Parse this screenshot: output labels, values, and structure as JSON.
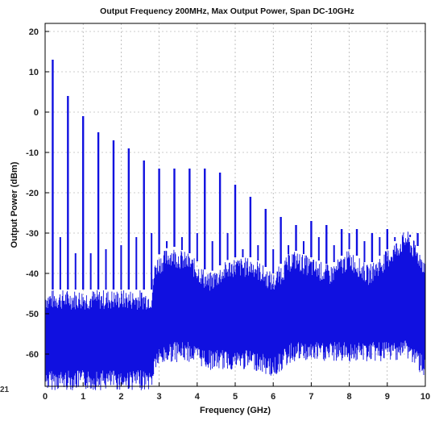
{
  "edge_label": "21",
  "chart_data": {
    "type": "line",
    "title": "Output Frequency 200MHz, Max Output Power, Span DC-10GHz",
    "xlabel": "Frequency (GHz)",
    "ylabel": "Output Power (dBm)",
    "xlim": [
      0,
      10
    ],
    "ylim": [
      -68,
      22
    ],
    "xticks": [
      0,
      1,
      2,
      3,
      4,
      5,
      6,
      7,
      8,
      9,
      10
    ],
    "yticks": [
      -60,
      -50,
      -40,
      -30,
      -20,
      -10,
      0,
      10,
      20
    ],
    "grid": true,
    "color": "#1010e0",
    "noise_floor": [
      {
        "x": 0.0,
        "top": -48,
        "bottom": -65
      },
      {
        "x": 2.8,
        "top": -48,
        "bottom": -65
      },
      {
        "x": 2.9,
        "top": -40,
        "bottom": -60
      },
      {
        "x": 3.3,
        "top": -37,
        "bottom": -58
      },
      {
        "x": 3.8,
        "top": -39,
        "bottom": -58
      },
      {
        "x": 4.3,
        "top": -44,
        "bottom": -60
      },
      {
        "x": 4.9,
        "top": -40,
        "bottom": -60
      },
      {
        "x": 5.5,
        "top": -40,
        "bottom": -60
      },
      {
        "x": 6.0,
        "top": -44,
        "bottom": -62
      },
      {
        "x": 6.5,
        "top": -38,
        "bottom": -58
      },
      {
        "x": 7.0,
        "top": -40,
        "bottom": -58
      },
      {
        "x": 7.5,
        "top": -42,
        "bottom": -58
      },
      {
        "x": 8.0,
        "top": -38,
        "bottom": -58
      },
      {
        "x": 8.5,
        "top": -42,
        "bottom": -58
      },
      {
        "x": 9.0,
        "top": -38,
        "bottom": -58
      },
      {
        "x": 9.5,
        "top": -33,
        "bottom": -57
      },
      {
        "x": 10.0,
        "top": -40,
        "bottom": -62
      }
    ],
    "harmonics": {
      "x": [
        0.2,
        0.6,
        1.0,
        1.4,
        1.8,
        2.2,
        2.6,
        3.0,
        3.4,
        3.8,
        4.2,
        4.6,
        5.0,
        5.4,
        5.8,
        6.2,
        6.6,
        7.0,
        7.4,
        7.8,
        8.2,
        8.6,
        9.0,
        9.4,
        9.8
      ],
      "values": [
        13,
        4,
        -1,
        -5,
        -7,
        -9,
        -12,
        -14,
        -14,
        -14,
        -14,
        -15,
        -18,
        -21,
        -24,
        -26,
        -28,
        -27,
        -28,
        -29,
        -29,
        -30,
        -29,
        -30,
        -30
      ]
    },
    "spurs": {
      "x": [
        0.4,
        0.8,
        1.2,
        1.6,
        2.0,
        2.4,
        2.8,
        3.2,
        3.6,
        4.0,
        4.4,
        4.8,
        5.2,
        5.6,
        6.0,
        6.4,
        6.8,
        7.2,
        7.6,
        8.0,
        8.4,
        8.8,
        9.2,
        9.6
      ],
      "values": [
        -31,
        -35,
        -35,
        -34,
        -33,
        -31,
        -30,
        -32,
        -31,
        -30,
        -32,
        -30,
        -34,
        -33,
        -34,
        -33,
        -32,
        -31,
        -33,
        -30,
        -32,
        -31,
        -31,
        -31
      ]
    }
  }
}
